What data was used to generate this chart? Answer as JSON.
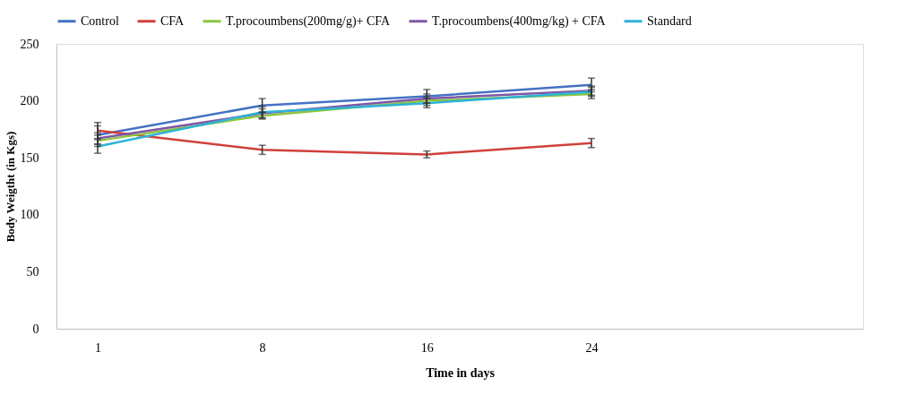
{
  "chart_data": {
    "type": "line",
    "xlabel": "Time in days",
    "ylabel": "Body Weigtht (in Kgs)",
    "categories": [
      "1",
      "8",
      "16",
      "24"
    ],
    "series": [
      {
        "name": "Control",
        "color": "#4472c4",
        "values": [
          170,
          196,
          204,
          214
        ],
        "errors": [
          8,
          6,
          6,
          6
        ]
      },
      {
        "name": "CFA",
        "color": "#d0403c",
        "values": [
          174,
          157,
          153,
          163
        ],
        "errors": [
          7,
          4,
          3,
          4
        ]
      },
      {
        "name": "T.procoumbens(200mg/g)+ CFA",
        "color": "#8cc63f",
        "values": [
          165,
          187,
          200,
          206
        ],
        "errors": [
          5,
          3,
          4,
          4
        ]
      },
      {
        "name": "T.procoumbens(400mg/kg) + CFA",
        "color": "#7e57a6",
        "values": [
          167,
          189,
          202,
          209
        ],
        "errors": [
          5,
          4,
          4,
          4
        ]
      },
      {
        "name": "Standard",
        "color": "#2eb3d6",
        "values": [
          160,
          190,
          198,
          208
        ],
        "errors": [
          6,
          5,
          4,
          4
        ]
      }
    ],
    "ylim": [
      0,
      250
    ],
    "yticks": [
      0,
      50,
      100,
      150,
      200,
      250
    ],
    "grid": false,
    "legend": "top",
    "marker": "none",
    "line_style": "solid"
  }
}
